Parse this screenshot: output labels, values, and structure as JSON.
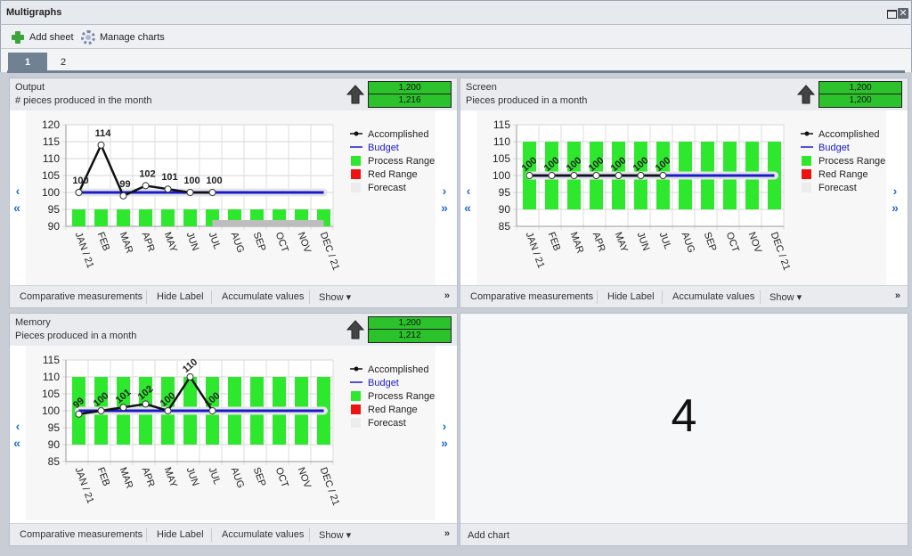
{
  "window": {
    "title": "Multigraphs",
    "restore_label": "",
    "close_label": "✕"
  },
  "toolbar": {
    "add_sheet_label": "Add sheet",
    "manage_charts_label": "Manage charts"
  },
  "tabs": [
    {
      "label": "1",
      "active": true
    },
    {
      "label": "2",
      "active": false
    }
  ],
  "footer": {
    "comparative": "Comparative measurements",
    "hide_label": "Hide Label",
    "accumulate": "Accumulate values",
    "show": "Show ▾",
    "more": "»"
  },
  "colors": {
    "process_range": "#2ee82e",
    "red_range": "#ee1111",
    "forecast": "#ececec",
    "budget": "#1a1acc",
    "accomplished": "#111111"
  },
  "panels": [
    {
      "title": "Output",
      "subtitle": "# pieces produced in the month",
      "goal_top": "1,200",
      "goal_bottom": "1,216"
    },
    {
      "title": "Screen",
      "subtitle": "Pieces produced in a month",
      "goal_top": "1,200",
      "goal_bottom": "1,200"
    },
    {
      "title": "Memory",
      "subtitle": "Pieces produced in a month",
      "goal_top": "1,200",
      "goal_bottom": "1,212"
    }
  ],
  "placeholder": {
    "number": "4",
    "add_chart_label": "Add chart"
  },
  "chart_data": [
    {
      "type": "line",
      "categories": [
        "JAN / 21",
        "FEB",
        "MAR",
        "APR",
        "MAY",
        "JUN",
        "JUL",
        "AUG",
        "SEP",
        "OCT",
        "NOV",
        "DEC / 21"
      ],
      "ylim": [
        90,
        120
      ],
      "yticks": [
        90,
        95,
        100,
        105,
        110,
        115,
        120
      ],
      "series": [
        {
          "name": "Accomplished",
          "values": [
            100,
            114,
            99,
            102,
            101,
            100,
            100,
            null,
            null,
            null,
            null,
            null
          ]
        },
        {
          "name": "Budget",
          "values": [
            100,
            100,
            100,
            100,
            100,
            100,
            100,
            100,
            100,
            100,
            100,
            100
          ]
        }
      ],
      "process_range": [
        90,
        95
      ],
      "forecast_months": [
        "JUL",
        "AUG",
        "SEP",
        "OCT",
        "NOV",
        "DEC / 21"
      ],
      "legend": [
        "Accomplished",
        "Budget",
        "Process Range",
        "Red Range",
        "Forecast"
      ],
      "legend_position": "right"
    },
    {
      "type": "line",
      "categories": [
        "JAN / 21",
        "FEB",
        "MAR",
        "APR",
        "MAY",
        "JUN",
        "JUL",
        "AUG",
        "SEP",
        "OCT",
        "NOV",
        "DEC / 21"
      ],
      "ylim": [
        85,
        115
      ],
      "yticks": [
        85,
        90,
        95,
        100,
        105,
        110,
        115
      ],
      "series": [
        {
          "name": "Accomplished",
          "values": [
            100,
            100,
            100,
            100,
            100,
            100,
            100,
            null,
            null,
            null,
            null,
            null
          ]
        },
        {
          "name": "Budget",
          "values": [
            100,
            100,
            100,
            100,
            100,
            100,
            100,
            100,
            100,
            100,
            100,
            100
          ]
        }
      ],
      "process_range": [
        90,
        110
      ],
      "legend": [
        "Accomplished",
        "Budget",
        "Process Range",
        "Red Range",
        "Forecast"
      ],
      "legend_position": "right"
    },
    {
      "type": "line",
      "categories": [
        "JAN / 21",
        "FEB",
        "MAR",
        "APR",
        "MAY",
        "JUN",
        "JUL",
        "AUG",
        "SEP",
        "OCT",
        "NOV",
        "DEC / 21"
      ],
      "ylim": [
        85,
        115
      ],
      "yticks": [
        85,
        90,
        95,
        100,
        105,
        110,
        115
      ],
      "series": [
        {
          "name": "Accomplished",
          "values": [
            99,
            100,
            101,
            102,
            100,
            110,
            100,
            null,
            null,
            null,
            null,
            null
          ]
        },
        {
          "name": "Budget",
          "values": [
            100,
            100,
            100,
            100,
            100,
            100,
            100,
            100,
            100,
            100,
            100,
            100
          ]
        }
      ],
      "process_range": [
        90,
        110
      ],
      "legend": [
        "Accomplished",
        "Budget",
        "Process Range",
        "Red Range",
        "Forecast"
      ],
      "legend_position": "right"
    }
  ]
}
